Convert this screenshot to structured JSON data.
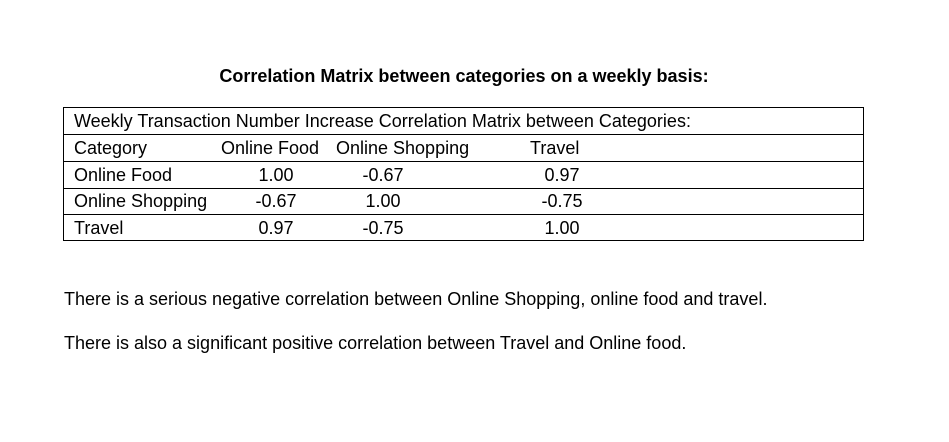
{
  "heading": "Correlation Matrix between categories on a weekly basis:",
  "matrix": {
    "title": "Weekly Transaction Number Increase Correlation Matrix between Categories:",
    "headers": [
      "Category",
      "Online Food",
      "Online Shopping",
      "Travel"
    ],
    "rows": [
      {
        "category": "Online Food",
        "online_food": "1.00",
        "online_shopping": "-0.67",
        "travel": "0.97"
      },
      {
        "category": "Online Shopping",
        "online_food": "-0.67",
        "online_shopping": "1.00",
        "travel": "-0.75"
      },
      {
        "category": "Travel",
        "online_food": "0.97",
        "online_shopping": "-0.75",
        "travel": "1.00"
      }
    ]
  },
  "paragraphs": [
    "There is a serious negative correlation between Online Shopping, online food and travel.",
    "There is also a significant positive correlation between Travel and Online food."
  ],
  "chart_data": {
    "type": "table",
    "title": "Weekly Transaction Number Increase Correlation Matrix between Categories:",
    "columns": [
      "Category",
      "Online Food",
      "Online Shopping",
      "Travel"
    ],
    "rows": [
      [
        "Online Food",
        1.0,
        -0.67,
        0.97
      ],
      [
        "Online Shopping",
        -0.67,
        1.0,
        -0.75
      ],
      [
        "Travel",
        0.97,
        -0.75,
        1.0
      ]
    ]
  }
}
